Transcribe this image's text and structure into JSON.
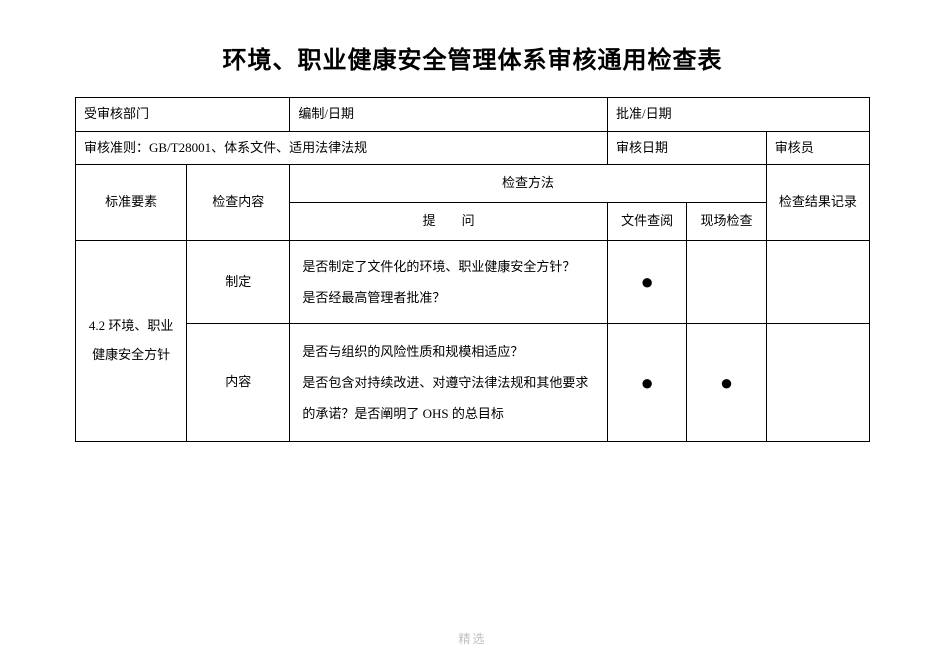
{
  "title": "环境、职业健康安全管理体系审核通用检查表",
  "header": {
    "dept_label": "受审核部门",
    "prep_label": "编制/日期",
    "approve_label": "批准/日期",
    "criteria_label": "审核准则：GB/T28001、体系文件、适用法律法规",
    "audit_date_label": "审核日期",
    "auditor_label": "审核员"
  },
  "thead": {
    "std_element": "标准要素",
    "check_content": "检查内容",
    "check_method": "检查方法",
    "question": "提　　问",
    "doc_review": "文件查阅",
    "site_check": "现场检查",
    "result": "检查结果记录"
  },
  "rows": [
    {
      "std": "4.2 环境、职业健康安全方针",
      "items": [
        {
          "content": "制定",
          "question": "是否制定了文件化的环境、职业健康安全方针？\n是否经最高管理者批准？",
          "doc": "●",
          "site": ""
        },
        {
          "content": "内容",
          "question": "是否与组织的风险性质和规模相适应？\n是否包含对持续改进、对遵守法律法规和其他要求的承诺？是否阐明了 OHS 的总目标",
          "doc": "●",
          "site": "●"
        }
      ]
    }
  ],
  "footer": "精选"
}
